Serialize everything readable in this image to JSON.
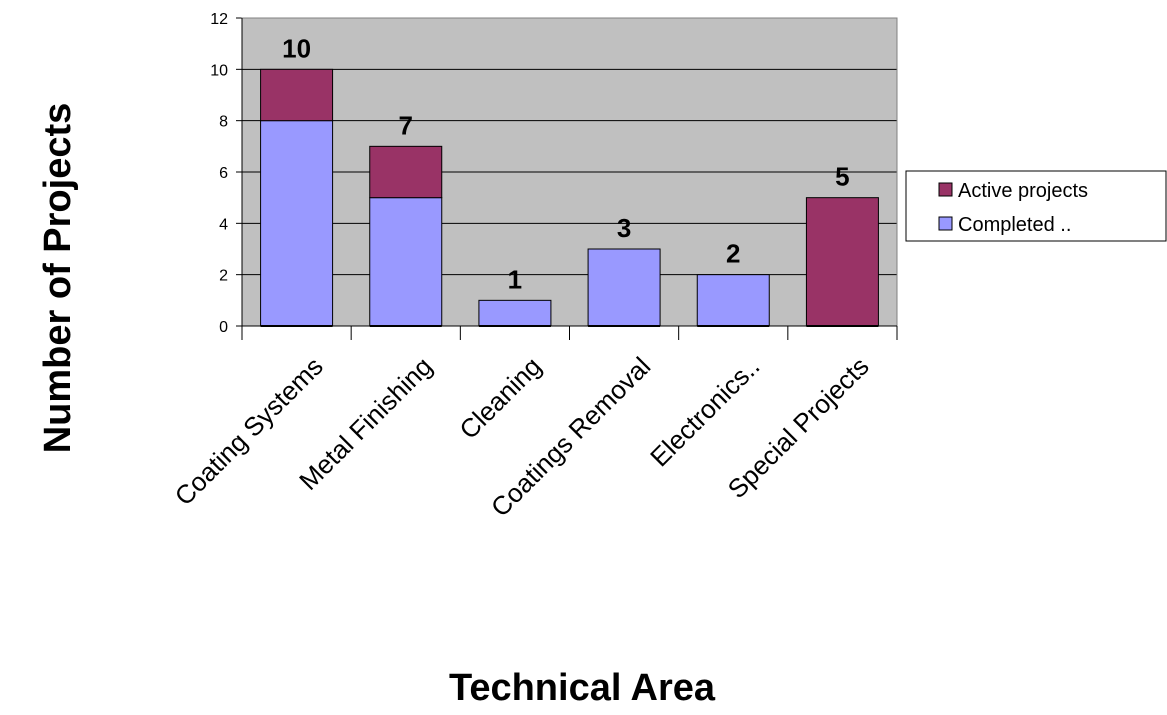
{
  "chart_data": {
    "type": "bar",
    "stacked": true,
    "categories": [
      "Coating Systems",
      "Metal Finishing",
      "Cleaning",
      "Coatings Removal",
      "Electronics..",
      "Special Projects"
    ],
    "series": [
      {
        "name": "Completed ..",
        "values": [
          8,
          5,
          1,
          3,
          2,
          0
        ],
        "color": "#9999ff"
      },
      {
        "name": "Active projects",
        "values": [
          2,
          2,
          0,
          0,
          0,
          5
        ],
        "color": "#993366"
      }
    ],
    "totals": [
      "10",
      "7",
      "1",
      "3",
      "2",
      "5"
    ],
    "xlabel": "Technical Area",
    "ylabel": "Number of Projects",
    "ylim": [
      0,
      12
    ],
    "yticks": [
      "0",
      "2",
      "4",
      "6",
      "8",
      "10",
      "12"
    ],
    "grid": true,
    "plot_background": "#c0c0c0",
    "legend_position": "right"
  }
}
